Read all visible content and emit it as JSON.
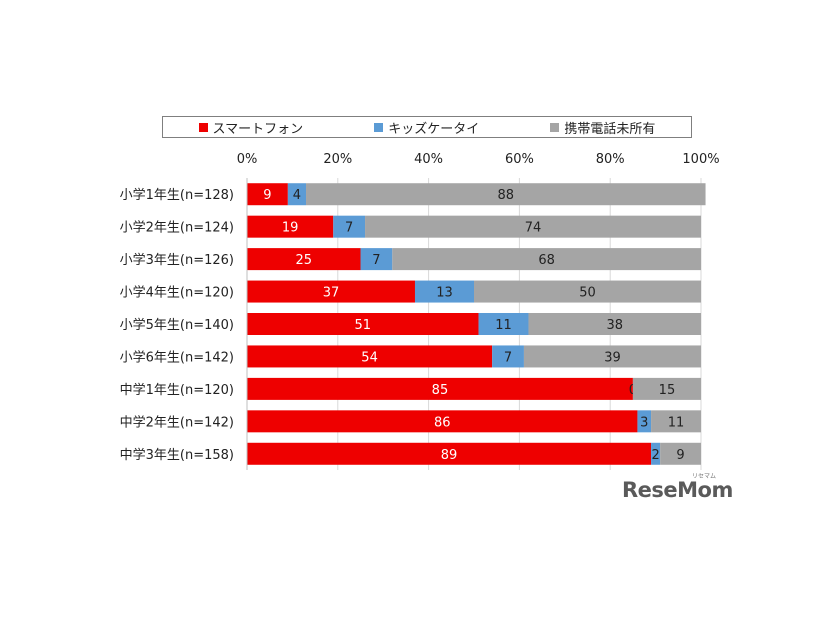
{
  "legend": [
    {
      "label": "スマートフォン",
      "color": "#ee0000"
    },
    {
      "label": "キッズケータイ",
      "color": "#5b9bd5"
    },
    {
      "label": "携帯電話未所有",
      "color": "#a5a5a5"
    }
  ],
  "logo": {
    "text": "ReseMom",
    "kana": "リセマム"
  },
  "chart_data": {
    "type": "bar",
    "orientation": "horizontal",
    "stacked": true,
    "xlim": [
      0,
      100
    ],
    "x_ticks": [
      "0%",
      "20%",
      "40%",
      "60%",
      "80%",
      "100%"
    ],
    "categories": [
      "小学1年生(n=128)",
      "小学2年生(n=124)",
      "小学3年生(n=126)",
      "小学4年生(n=120)",
      "小学5年生(n=140)",
      "小学6年生(n=142)",
      "中学1年生(n=120)",
      "中学2年生(n=142)",
      "中学3年生(n=158)"
    ],
    "series": [
      {
        "name": "スマートフォン",
        "color": "#ee0000",
        "values": [
          9,
          19,
          25,
          37,
          51,
          54,
          85,
          86,
          89
        ]
      },
      {
        "name": "キッズケータイ",
        "color": "#5b9bd5",
        "values": [
          4,
          7,
          7,
          13,
          11,
          7,
          0,
          3,
          2
        ]
      },
      {
        "name": "携帯電話未所有",
        "color": "#a5a5a5",
        "values": [
          88,
          74,
          68,
          50,
          38,
          39,
          15,
          11,
          9
        ]
      }
    ],
    "grid": true,
    "legend_position": "top"
  }
}
